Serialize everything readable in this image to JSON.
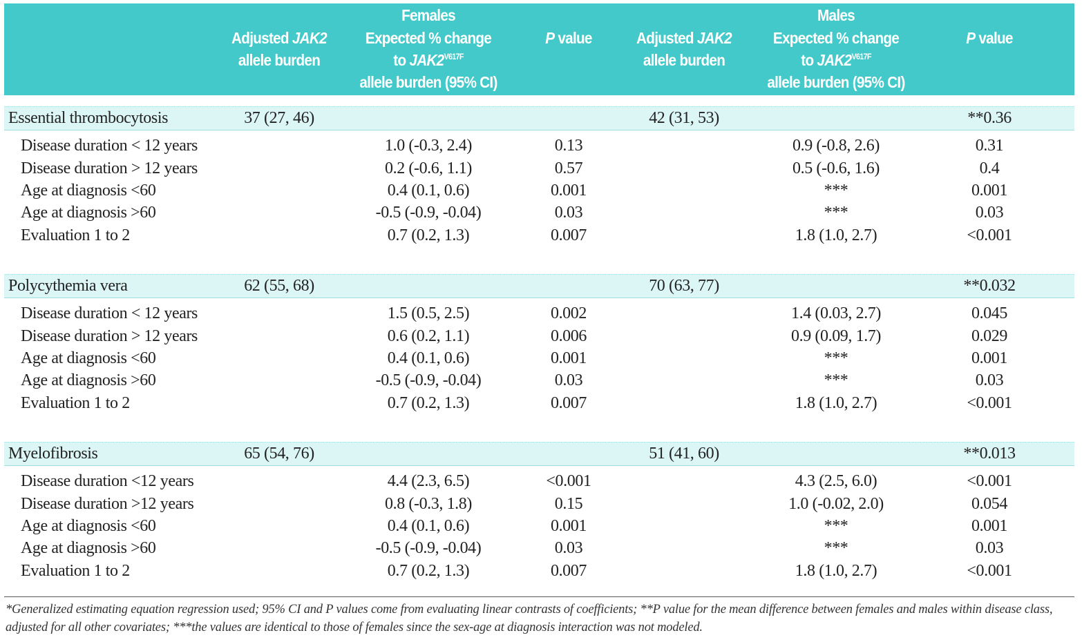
{
  "header": {
    "females": "Females",
    "males": "Males",
    "female_burden": [
      "Adjusted",
      "JAK2",
      "allele burden"
    ],
    "female_change": [
      "Expected % change",
      "to",
      "JAK2",
      "V617F",
      "allele burden (95% CI)"
    ],
    "female_p": [
      "P",
      "value"
    ],
    "male_burden": [
      "Adjusted",
      "JAK2",
      "allele burden"
    ],
    "male_change": [
      "Expected % change",
      "to",
      "JAK2",
      "V617F",
      "allele burden (95% CI)"
    ],
    "male_p": [
      "P",
      "value"
    ]
  },
  "groups": [
    {
      "name": "Essential thrombocytosis",
      "female_burden": "37 (27, 46)",
      "male_burden": "42 (31, 53)",
      "p_difference": "**0.36",
      "rows": [
        [
          "Disease duration < 12 years",
          "1.0 (-0.3, 2.4)",
          "0.13",
          "0.9 (-0.8, 2.6)",
          "0.31"
        ],
        [
          "Disease duration > 12 years",
          "0.2 (-0.6, 1.1)",
          "0.57",
          "0.5 (-0.6, 1.6)",
          "0.4"
        ],
        [
          "Age at diagnosis <60",
          "0.4 (0.1, 0.6)",
          "0.001",
          "***",
          "0.001"
        ],
        [
          "Age at diagnosis >60",
          "-0.5 (-0.9, -0.04)",
          "0.03",
          "***",
          "0.03"
        ],
        [
          "Evaluation 1 to 2",
          "0.7 (0.2, 1.3)",
          "0.007",
          "1.8 (1.0, 2.7)",
          "<0.001"
        ]
      ]
    },
    {
      "name": "Polycythemia vera",
      "female_burden": "62 (55, 68)",
      "male_burden": "70 (63, 77)",
      "p_difference": "**0.032",
      "rows": [
        [
          "Disease duration < 12 years",
          "1.5 (0.5, 2.5)",
          "0.002",
          "1.4 (0.03, 2.7)",
          "0.045"
        ],
        [
          "Disease duration > 12 years",
          "0.6 (0.2, 1.1)",
          "0.006",
          "0.9 (0.09, 1.7)",
          "0.029"
        ],
        [
          "Age at diagnosis <60",
          "0.4 (0.1, 0.6)",
          "0.001",
          "***",
          "0.001"
        ],
        [
          "Age at diagnosis >60",
          "-0.5 (-0.9, -0.04)",
          "0.03",
          "***",
          "0.03"
        ],
        [
          "Evaluation 1 to 2",
          "0.7 (0.2, 1.3)",
          "0.007",
          "1.8 (1.0, 2.7)",
          "<0.001"
        ]
      ]
    },
    {
      "name": "Myelofibrosis",
      "female_burden": "65 (54, 76)",
      "male_burden": "51 (41, 60)",
      "p_difference": "**0.013",
      "rows": [
        [
          "Disease duration <12 years",
          "4.4 (2.3, 6.5)",
          "<0.001",
          "4.3 (2.5, 6.0)",
          "<0.001"
        ],
        [
          "Disease duration >12 years",
          "0.8 (-0.3, 1.8)",
          "0.15",
          "1.0 (-0.02, 2.0)",
          "0.054"
        ],
        [
          "Age at diagnosis <60",
          "0.4 (0.1, 0.6)",
          "0.001",
          "***",
          "0.001"
        ],
        [
          "Age at diagnosis >60",
          "-0.5 (-0.9, -0.04)",
          "0.03",
          "***",
          "0.03"
        ],
        [
          "Evaluation 1 to 2",
          "0.7 (0.2, 1.3)",
          "0.007",
          "1.8 (1.0, 2.7)",
          "<0.001"
        ]
      ]
    }
  ],
  "footnote": "*Generalized estimating equation regression used; 95% CI and P values come from evaluating linear contrasts of coefficients; **P value for the mean difference between females and males within disease class, adjusted for all other covariates; ***the values are identical to those of females since the sex-age at diagnosis interaction was not modeled."
}
